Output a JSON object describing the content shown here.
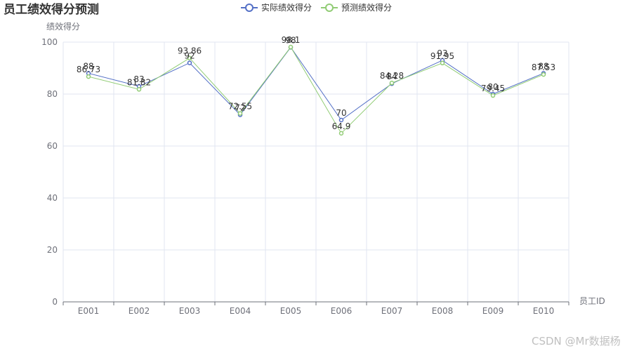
{
  "chart_data": {
    "type": "line",
    "title": "员工绩效得分预测",
    "xlabel": "员工ID",
    "ylabel": "绩效得分",
    "categories": [
      "E001",
      "E002",
      "E003",
      "E004",
      "E005",
      "E006",
      "E007",
      "E008",
      "E009",
      "E010"
    ],
    "ylim": [
      0,
      100
    ],
    "yticks": [
      0,
      20,
      40,
      60,
      80,
      100
    ],
    "grid": true,
    "legend_position": "top-center",
    "series": [
      {
        "name": "实际绩效得分",
        "color": "#5470c6",
        "values": [
          88,
          83,
          92,
          72,
          98,
          70,
          84,
          93,
          80,
          88
        ]
      },
      {
        "name": "预测绩效得分",
        "color": "#91cc75",
        "values": [
          86.73,
          81.82,
          93.86,
          72.55,
          98.1,
          64.9,
          84.28,
          91.95,
          79.45,
          87.53
        ]
      }
    ]
  },
  "watermark": "CSDN @Mr数据杨"
}
